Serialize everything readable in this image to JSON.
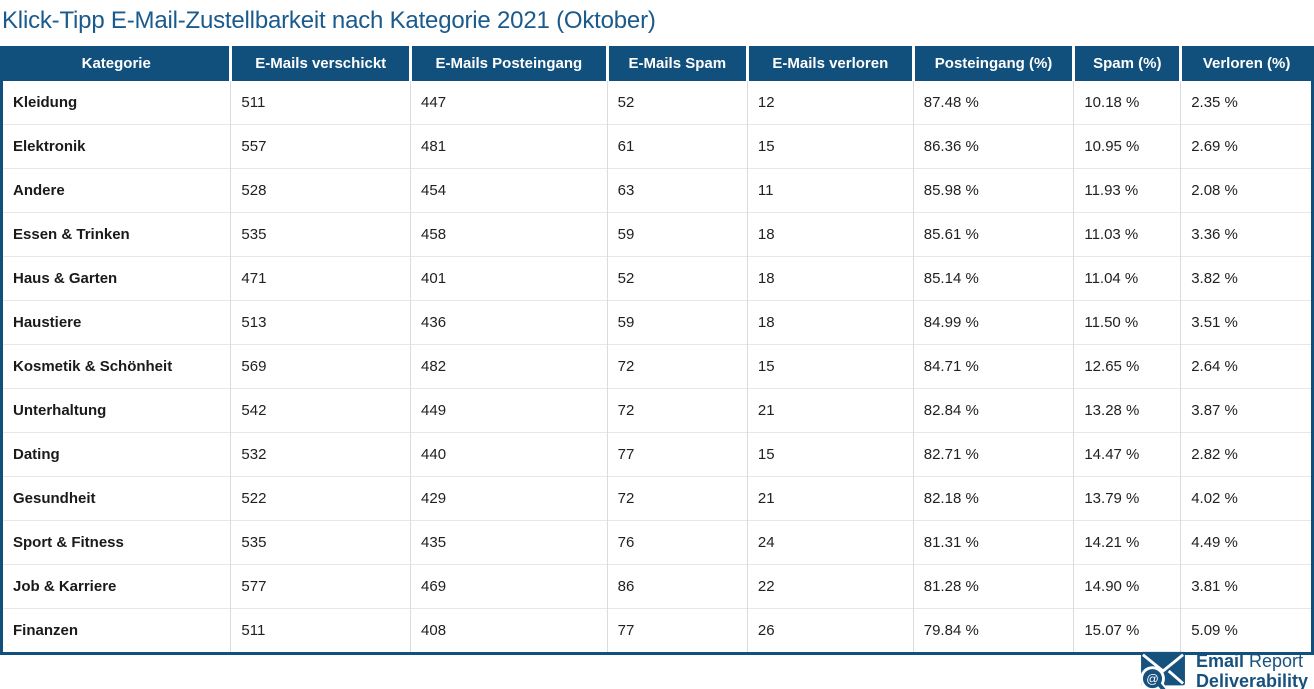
{
  "chart_data": {
    "type": "table",
    "title": "Klick-Tipp E-Mail-Zustellbarkeit nach Kategorie 2021 (Oktober)",
    "columns": [
      "Kategorie",
      "E-Mails verschickt",
      "E-Mails Posteingang",
      "E-Mails Spam",
      "E-Mails verloren",
      "Posteingang (%)",
      "Spam (%)",
      "Verloren (%)"
    ],
    "rows": [
      [
        "Kleidung",
        "511",
        "447",
        "52",
        "12",
        "87.48 %",
        "10.18 %",
        "2.35 %"
      ],
      [
        "Elektronik",
        "557",
        "481",
        "61",
        "15",
        "86.36 %",
        "10.95 %",
        "2.69 %"
      ],
      [
        "Andere",
        "528",
        "454",
        "63",
        "11",
        "85.98 %",
        "11.93 %",
        "2.08 %"
      ],
      [
        "Essen & Trinken",
        "535",
        "458",
        "59",
        "18",
        "85.61 %",
        "11.03 %",
        "3.36 %"
      ],
      [
        "Haus & Garten",
        "471",
        "401",
        "52",
        "18",
        "85.14 %",
        "11.04 %",
        "3.82 %"
      ],
      [
        "Haustiere",
        "513",
        "436",
        "59",
        "18",
        "84.99 %",
        "11.50 %",
        "3.51 %"
      ],
      [
        "Kosmetik & Schönheit",
        "569",
        "482",
        "72",
        "15",
        "84.71 %",
        "12.65 %",
        "2.64 %"
      ],
      [
        "Unterhaltung",
        "542",
        "449",
        "72",
        "21",
        "82.84 %",
        "13.28 %",
        "3.87 %"
      ],
      [
        "Dating",
        "532",
        "440",
        "77",
        "15",
        "82.71 %",
        "14.47 %",
        "2.82 %"
      ],
      [
        "Gesundheit",
        "522",
        "429",
        "72",
        "21",
        "82.18 %",
        "13.79 %",
        "4.02 %"
      ],
      [
        "Sport & Fitness",
        "535",
        "435",
        "76",
        "24",
        "81.31 %",
        "14.21 %",
        "4.49 %"
      ],
      [
        "Job & Karriere",
        "577",
        "469",
        "86",
        "22",
        "81.28 %",
        "14.90 %",
        "3.81 %"
      ],
      [
        "Finanzen",
        "511",
        "408",
        "77",
        "26",
        "79.84 %",
        "15.07 %",
        "5.09 %"
      ]
    ]
  },
  "footer": {
    "logo_word1": "Email",
    "logo_word2": "Report",
    "logo_line2": "Deliverability",
    "at_symbol": "@"
  },
  "colors": {
    "header_bg": "#11507d",
    "title_text": "#1b5a8c",
    "table_border": "#11507d",
    "logo_blue": "#17527f",
    "row_separator": "#e8e8e8",
    "column_separator": "#dcdcdc",
    "body_text": "#212121"
  }
}
